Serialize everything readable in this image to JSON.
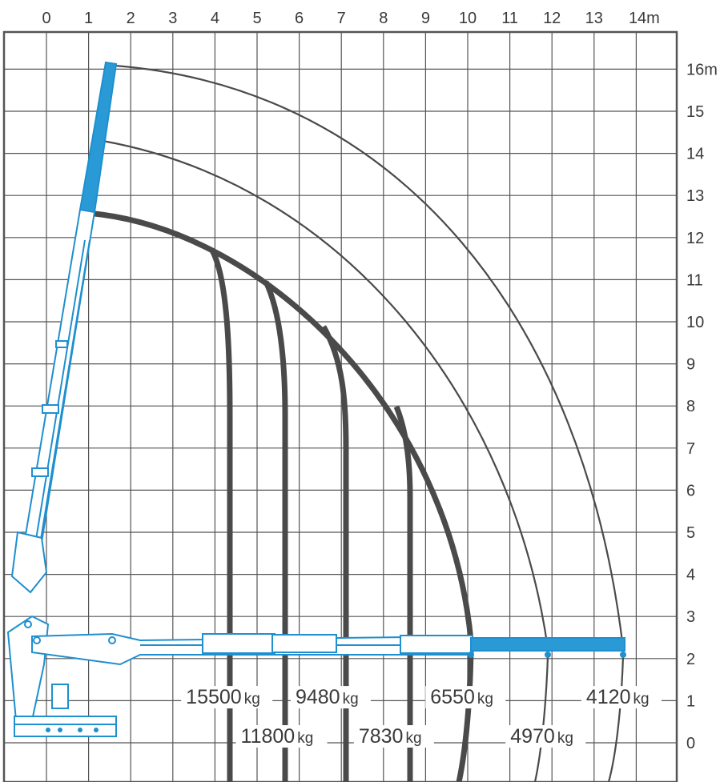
{
  "chart_data": {
    "type": "diagram",
    "x_unit": "m",
    "y_unit": "m",
    "x_ticks": [
      "0",
      "1",
      "2",
      "3",
      "4",
      "5",
      "6",
      "7",
      "8",
      "9",
      "10",
      "11",
      "12",
      "13",
      "14m"
    ],
    "y_ticks": [
      "0",
      "1",
      "2",
      "3",
      "4",
      "5",
      "6",
      "7",
      "8",
      "9",
      "10",
      "11",
      "12",
      "13",
      "14",
      "15",
      "16m"
    ],
    "xlim": [
      0,
      14
    ],
    "ylim": [
      0,
      16
    ],
    "grid": true,
    "load_labels": [
      {
        "value": "15500",
        "unit": "kg"
      },
      {
        "value": "11800",
        "unit": "kg"
      },
      {
        "value": "9480",
        "unit": "kg"
      },
      {
        "value": "7830",
        "unit": "kg"
      },
      {
        "value": "6550",
        "unit": "kg"
      },
      {
        "value": "4970",
        "unit": "kg"
      },
      {
        "value": "4120",
        "unit": "kg"
      }
    ],
    "outreach_m": [
      4.3,
      5.6,
      6.9,
      8.4,
      10.1,
      12.0,
      13.8
    ],
    "colors": {
      "grid": "#555555",
      "crane": "#1e8fcf",
      "crane_fill": "#2a9ad6",
      "curve": "#4a4a4a"
    }
  }
}
